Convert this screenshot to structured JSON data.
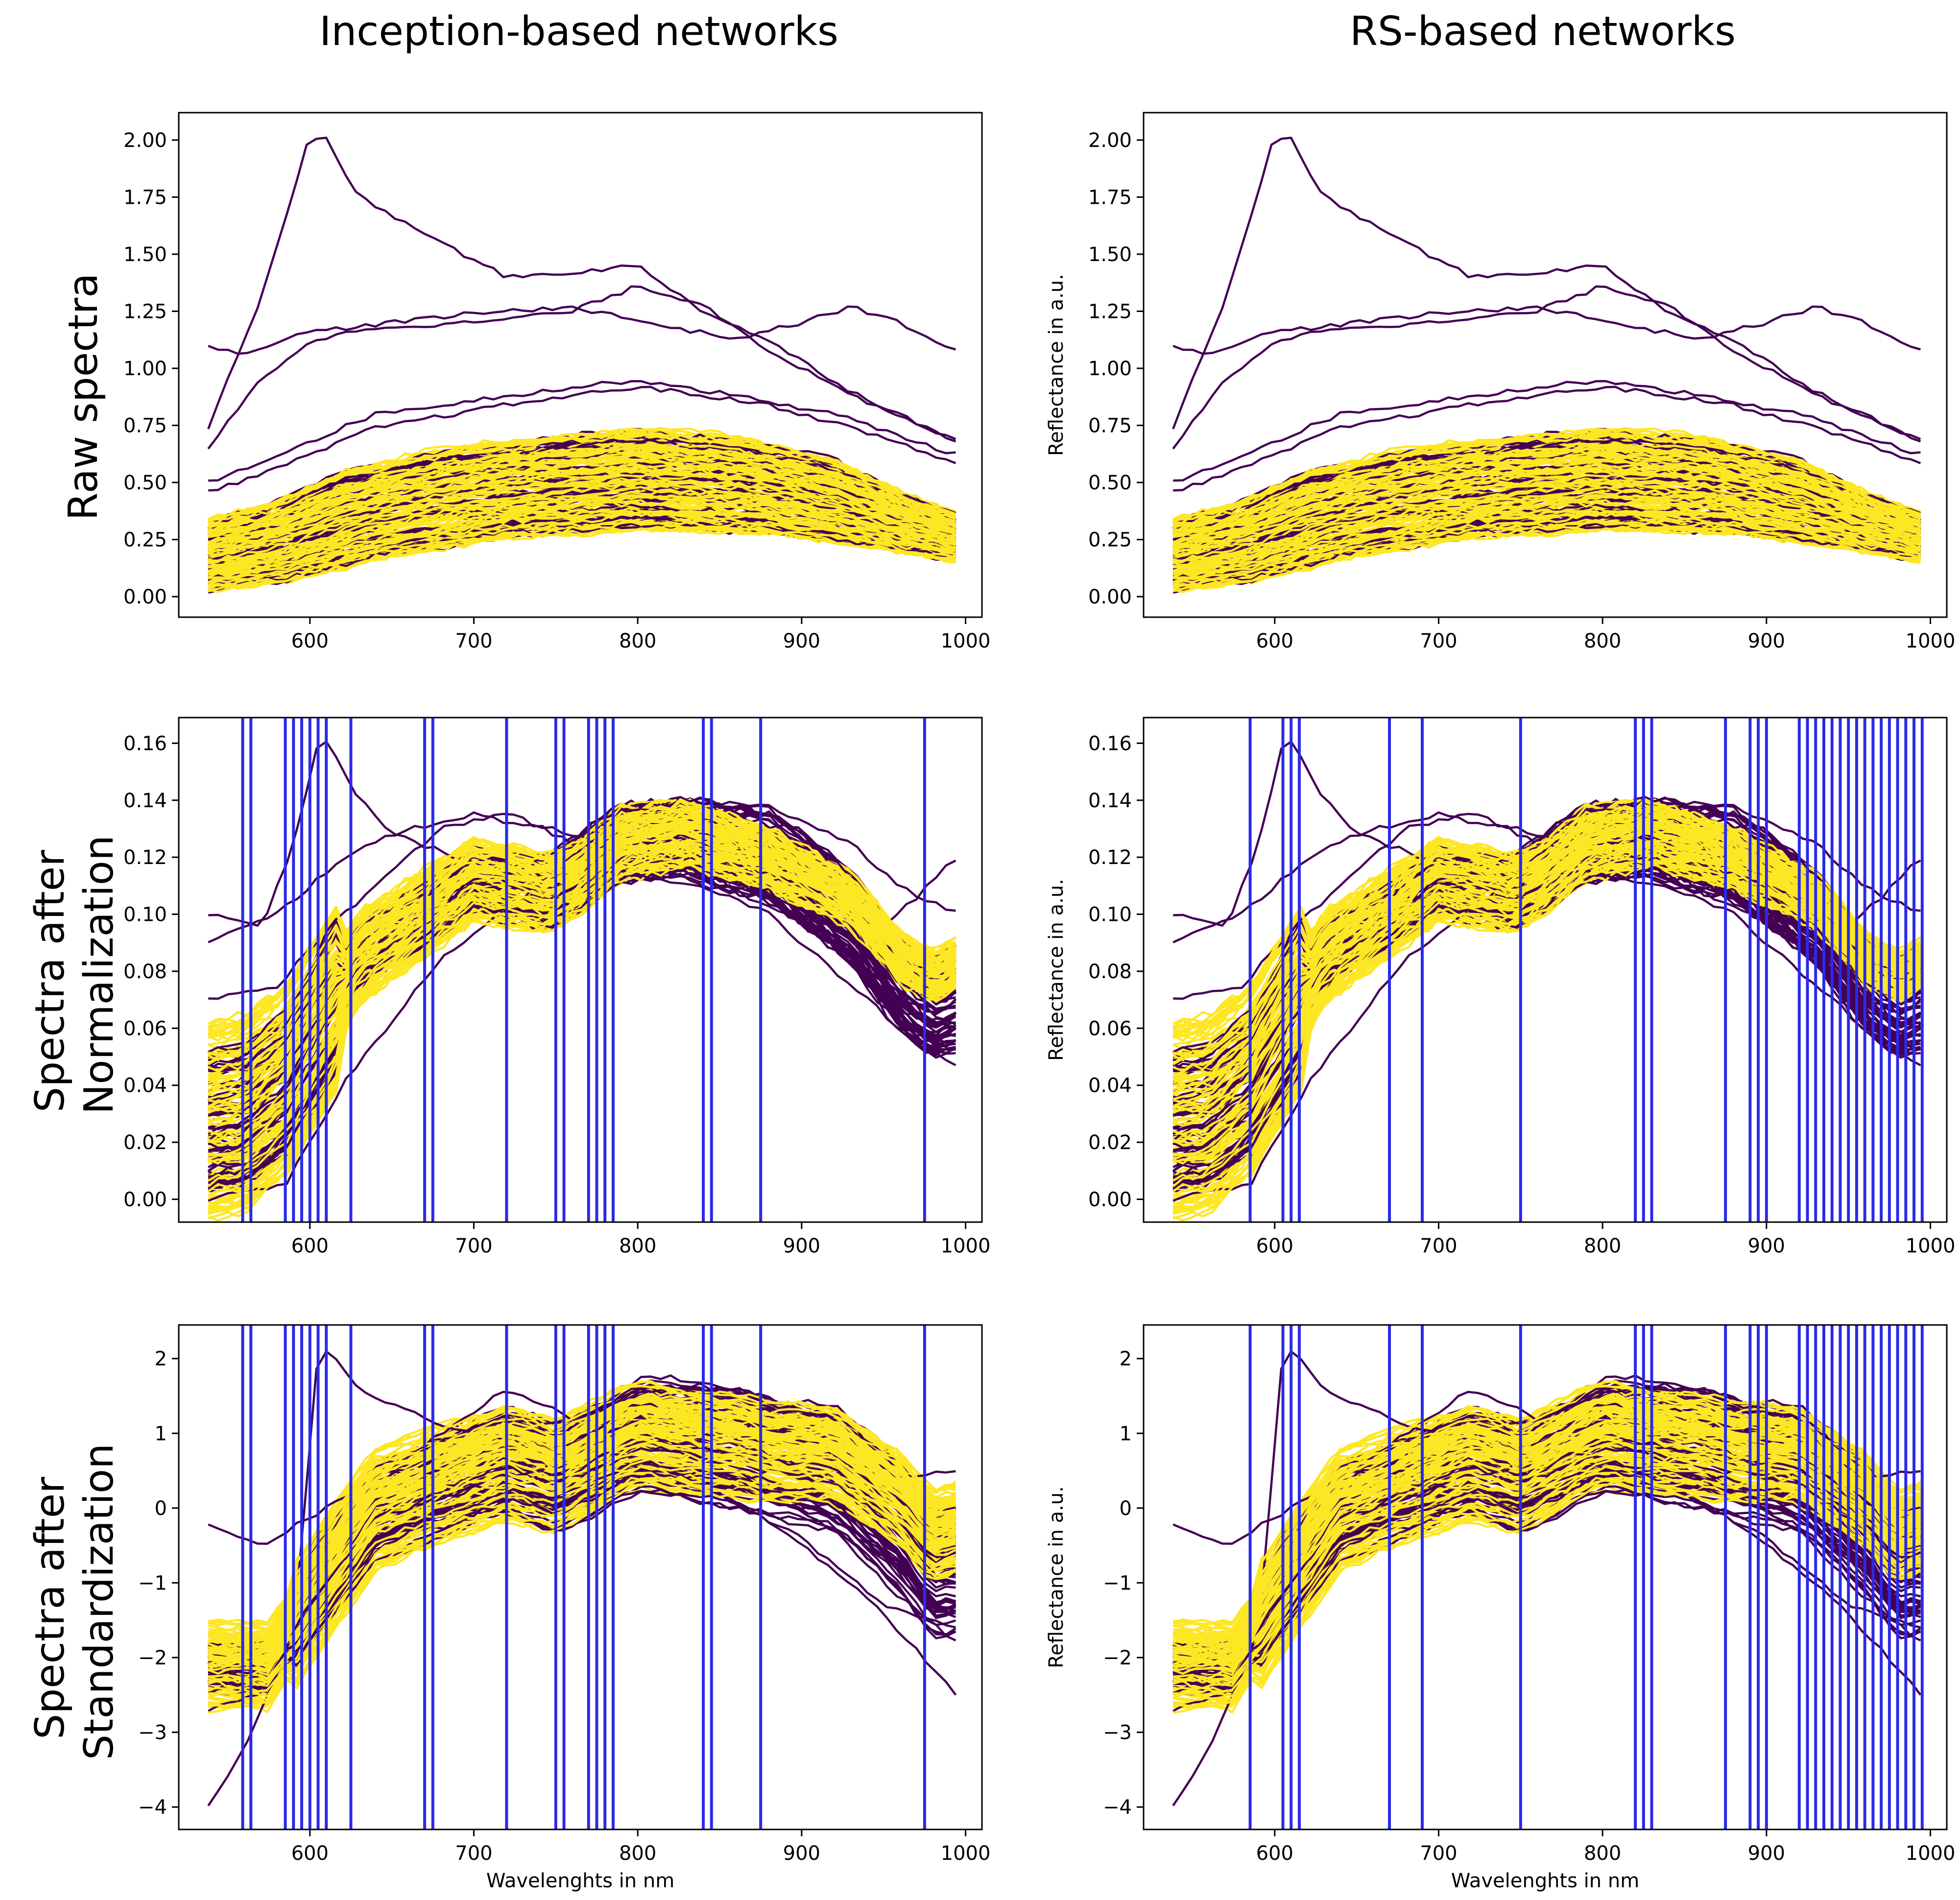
{
  "figure": {
    "column_titles": [
      "Inception-based networks",
      "RS-based networks"
    ],
    "row_titles": [
      [
        "Raw spectra"
      ],
      [
        "Spectra after",
        "Normalization"
      ],
      [
        "Spectra after",
        "Standardization"
      ]
    ],
    "series_colors": {
      "class_a": "#440154",
      "class_b": "#fde725",
      "selected_band": "#2a2ae8"
    }
  },
  "chart_data": [
    {
      "id": "raw-inception",
      "type": "line",
      "row": 0,
      "col": 0,
      "title": "",
      "xlabel": "",
      "ylabel": "",
      "xlim": [
        520,
        1010
      ],
      "ylim": [
        -0.09,
        2.12
      ],
      "xticks": [
        600,
        700,
        800,
        900,
        1000
      ],
      "yticks": [
        "0.00",
        "0.25",
        "0.50",
        "0.75",
        "1.00",
        "1.25",
        "1.50",
        "1.75",
        "2.00"
      ],
      "bands": []
    },
    {
      "id": "raw-rs",
      "type": "line",
      "row": 0,
      "col": 1,
      "title": "",
      "xlabel": "",
      "ylabel": "Reflectance in a.u.",
      "xlim": [
        520,
        1010
      ],
      "ylim": [
        -0.09,
        2.12
      ],
      "xticks": [
        600,
        700,
        800,
        900,
        1000
      ],
      "yticks": [
        "0.00",
        "0.25",
        "0.50",
        "0.75",
        "1.00",
        "1.25",
        "1.50",
        "1.75",
        "2.00"
      ],
      "bands": []
    },
    {
      "id": "norm-inception",
      "type": "line",
      "row": 1,
      "col": 0,
      "title": "",
      "xlabel": "",
      "ylabel": "",
      "xlim": [
        520,
        1010
      ],
      "ylim": [
        -0.008,
        0.169
      ],
      "xticks": [
        600,
        700,
        800,
        900,
        1000
      ],
      "yticks": [
        "0.00",
        "0.02",
        "0.04",
        "0.06",
        "0.08",
        "0.10",
        "0.12",
        "0.14",
        "0.16"
      ],
      "bands": [
        559,
        564,
        585,
        590,
        595,
        600,
        605,
        610,
        625,
        670,
        675,
        720,
        750,
        755,
        770,
        775,
        780,
        785,
        840,
        845,
        875,
        975
      ]
    },
    {
      "id": "norm-rs",
      "type": "line",
      "row": 1,
      "col": 1,
      "title": "",
      "xlabel": "",
      "ylabel": "Reflectance in a.u.",
      "xlim": [
        520,
        1010
      ],
      "ylim": [
        -0.008,
        0.169
      ],
      "xticks": [
        600,
        700,
        800,
        900,
        1000
      ],
      "yticks": [
        "0.00",
        "0.02",
        "0.04",
        "0.06",
        "0.08",
        "0.10",
        "0.12",
        "0.14",
        "0.16"
      ],
      "bands": [
        585,
        605,
        610,
        615,
        670,
        690,
        750,
        820,
        825,
        830,
        875,
        890,
        895,
        900,
        920,
        925,
        930,
        935,
        940,
        945,
        950,
        955,
        960,
        965,
        970,
        975,
        980,
        985,
        990,
        995
      ]
    },
    {
      "id": "std-inception",
      "type": "line",
      "row": 2,
      "col": 0,
      "title": "",
      "xlabel": "Wavelenghts in nm",
      "ylabel": "",
      "xlim": [
        520,
        1010
      ],
      "ylim": [
        -4.3,
        2.45
      ],
      "xticks": [
        600,
        700,
        800,
        900,
        1000
      ],
      "yticks": [
        "−4",
        "−3",
        "−2",
        "−1",
        "0",
        "1",
        "2"
      ],
      "bands": [
        559,
        564,
        585,
        590,
        595,
        600,
        605,
        610,
        625,
        670,
        675,
        720,
        750,
        755,
        770,
        775,
        780,
        785,
        840,
        845,
        875,
        975
      ]
    },
    {
      "id": "std-rs",
      "type": "line",
      "row": 2,
      "col": 1,
      "title": "",
      "xlabel": "Wavelenghts in nm",
      "ylabel": "Reflectance in a.u.",
      "xlim": [
        520,
        1010
      ],
      "ylim": [
        -4.3,
        2.45
      ],
      "xticks": [
        600,
        700,
        800,
        900,
        1000
      ],
      "yticks": [
        "−4",
        "−3",
        "−2",
        "−1",
        "0",
        "1",
        "2"
      ],
      "bands": [
        585,
        605,
        610,
        615,
        670,
        690,
        750,
        820,
        825,
        830,
        875,
        890,
        895,
        900,
        920,
        925,
        930,
        935,
        940,
        945,
        950,
        955,
        960,
        965,
        970,
        975,
        980,
        985,
        990,
        995
      ]
    }
  ]
}
